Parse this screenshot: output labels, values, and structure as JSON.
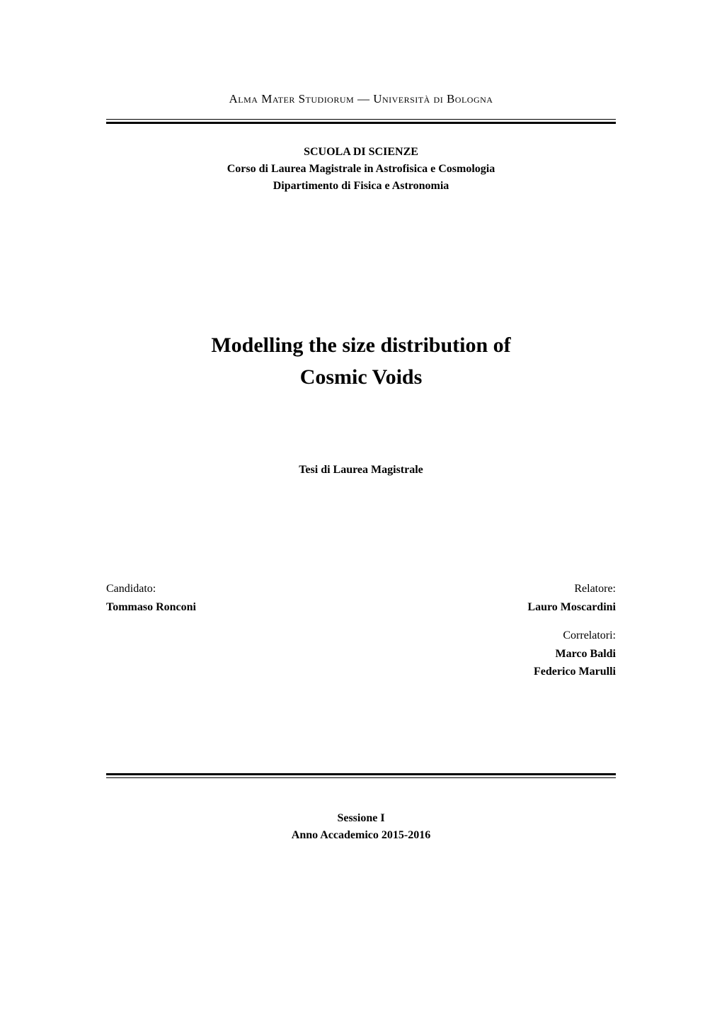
{
  "header": {
    "university": "Alma Mater Studiorum — Università di Bologna"
  },
  "school_block": {
    "school": "SCUOLA DI SCIENZE",
    "course": "Corso di Laurea Magistrale in Astrofisica e Cosmologia",
    "department": "Dipartimento di Fisica e Astronomia"
  },
  "title": {
    "line1": "Modelling the size distribution of",
    "line2": "Cosmic Voids"
  },
  "thesis_type": "Tesi di Laurea Magistrale",
  "candidate": {
    "label": "Candidato:",
    "name": "Tommaso Ronconi"
  },
  "advisor": {
    "label": "Relatore:",
    "name": "Lauro Moscardini"
  },
  "coadvisors": {
    "label": "Correlatori:",
    "name1": "Marco Baldi",
    "name2": "Federico Marulli"
  },
  "footer": {
    "session": "Sessione I",
    "academic_year": "Anno Accademico 2015-2016"
  },
  "styles": {
    "university_fontsize": 17,
    "school_fontsize": 16,
    "title_fontsize": 30,
    "thesis_type_fontsize": 16,
    "people_fontsize": 16,
    "footer_fontsize": 16,
    "text_color": "#000000",
    "background_color": "#ffffff",
    "rule_thin_width": 1,
    "rule_thick_width": 3,
    "rule_gap": 3
  }
}
